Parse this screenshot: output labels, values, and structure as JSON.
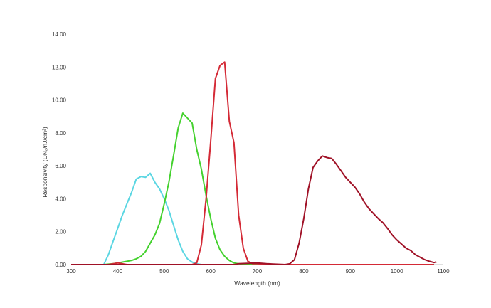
{
  "chart_data": {
    "type": "line",
    "xlabel": "Wavelength (nm)",
    "ylabel": "Responsivity (DNₐ/nJ/cm²)",
    "xlim": [
      300,
      1100
    ],
    "ylim": [
      0,
      14
    ],
    "xticks": [
      "300",
      "400",
      "500",
      "600",
      "700",
      "800",
      "900",
      "1000",
      "1100"
    ],
    "yticks": [
      "0.00",
      "2.00",
      "4.00",
      "6.00",
      "8.00",
      "10.00",
      "12.00",
      "14.00"
    ],
    "grid": false,
    "legend": "none",
    "series": [
      {
        "color": "#5ad6e2",
        "points": [
          [
            300,
            0
          ],
          [
            370,
            0
          ],
          [
            380,
            0.6
          ],
          [
            390,
            1.4
          ],
          [
            400,
            2.2
          ],
          [
            410,
            3.0
          ],
          [
            420,
            3.7
          ],
          [
            430,
            4.4
          ],
          [
            440,
            5.2
          ],
          [
            450,
            5.35
          ],
          [
            460,
            5.3
          ],
          [
            470,
            5.55
          ],
          [
            480,
            5.0
          ],
          [
            490,
            4.6
          ],
          [
            500,
            4.0
          ],
          [
            510,
            3.3
          ],
          [
            520,
            2.4
          ],
          [
            530,
            1.5
          ],
          [
            540,
            0.8
          ],
          [
            550,
            0.35
          ],
          [
            560,
            0.15
          ],
          [
            570,
            0.05
          ],
          [
            580,
            0
          ],
          [
            1080,
            0
          ]
        ]
      },
      {
        "color": "#44d12e",
        "points": [
          [
            300,
            0
          ],
          [
            370,
            0
          ],
          [
            390,
            0.05
          ],
          [
            400,
            0.1
          ],
          [
            420,
            0.2
          ],
          [
            430,
            0.25
          ],
          [
            440,
            0.35
          ],
          [
            450,
            0.5
          ],
          [
            460,
            0.8
          ],
          [
            470,
            1.3
          ],
          [
            480,
            1.8
          ],
          [
            490,
            2.5
          ],
          [
            500,
            3.7
          ],
          [
            510,
            5.0
          ],
          [
            520,
            6.6
          ],
          [
            530,
            8.3
          ],
          [
            540,
            9.2
          ],
          [
            550,
            8.9
          ],
          [
            560,
            8.6
          ],
          [
            570,
            7.0
          ],
          [
            580,
            5.8
          ],
          [
            590,
            4.2
          ],
          [
            600,
            2.8
          ],
          [
            610,
            1.6
          ],
          [
            620,
            0.9
          ],
          [
            630,
            0.5
          ],
          [
            640,
            0.25
          ],
          [
            650,
            0.1
          ],
          [
            660,
            0.05
          ],
          [
            680,
            0
          ],
          [
            1080,
            0
          ]
        ]
      },
      {
        "color": "#d42a36",
        "points": [
          [
            300,
            0
          ],
          [
            380,
            0
          ],
          [
            390,
            0.05
          ],
          [
            400,
            0.1
          ],
          [
            410,
            0.05
          ],
          [
            420,
            0
          ],
          [
            560,
            0
          ],
          [
            570,
            0.1
          ],
          [
            580,
            1.2
          ],
          [
            590,
            4.0
          ],
          [
            600,
            7.5
          ],
          [
            610,
            11.3
          ],
          [
            620,
            12.1
          ],
          [
            630,
            12.3
          ],
          [
            640,
            8.7
          ],
          [
            650,
            7.4
          ],
          [
            660,
            3.0
          ],
          [
            670,
            1.0
          ],
          [
            680,
            0.2
          ],
          [
            690,
            0.05
          ],
          [
            700,
            0.05
          ],
          [
            720,
            0
          ],
          [
            1080,
            0
          ]
        ]
      },
      {
        "color": "#a01227",
        "points": [
          [
            300,
            0
          ],
          [
            650,
            0
          ],
          [
            660,
            0.05
          ],
          [
            700,
            0.1
          ],
          [
            720,
            0.05
          ],
          [
            760,
            0
          ],
          [
            770,
            0.05
          ],
          [
            780,
            0.3
          ],
          [
            790,
            1.3
          ],
          [
            800,
            2.8
          ],
          [
            810,
            4.6
          ],
          [
            820,
            5.9
          ],
          [
            830,
            6.3
          ],
          [
            840,
            6.6
          ],
          [
            850,
            6.5
          ],
          [
            860,
            6.45
          ],
          [
            870,
            6.1
          ],
          [
            880,
            5.7
          ],
          [
            890,
            5.3
          ],
          [
            900,
            5.0
          ],
          [
            910,
            4.7
          ],
          [
            920,
            4.3
          ],
          [
            930,
            3.8
          ],
          [
            940,
            3.4
          ],
          [
            950,
            3.1
          ],
          [
            960,
            2.8
          ],
          [
            970,
            2.55
          ],
          [
            980,
            2.2
          ],
          [
            990,
            1.8
          ],
          [
            1000,
            1.5
          ],
          [
            1010,
            1.25
          ],
          [
            1020,
            1.0
          ],
          [
            1030,
            0.85
          ],
          [
            1040,
            0.6
          ],
          [
            1050,
            0.45
          ],
          [
            1060,
            0.3
          ],
          [
            1070,
            0.2
          ],
          [
            1080,
            0.12
          ],
          [
            1085,
            0.15
          ]
        ]
      }
    ]
  }
}
